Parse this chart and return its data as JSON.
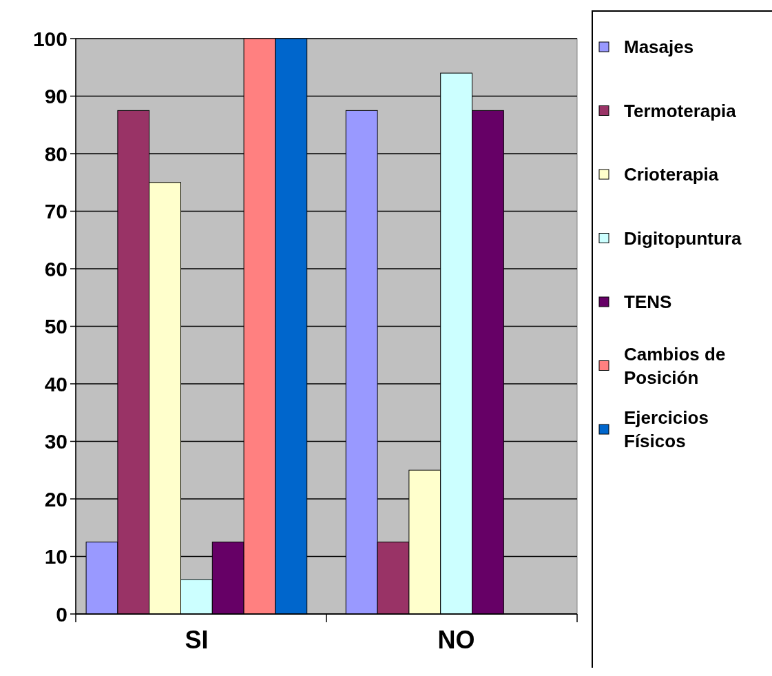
{
  "chart_data": {
    "type": "bar",
    "categories": [
      "SI",
      "NO"
    ],
    "series": [
      {
        "name": "Masajes",
        "color": "#9999ff",
        "values": [
          12.5,
          87.5
        ]
      },
      {
        "name": "Termoterapia",
        "color": "#993366",
        "values": [
          87.5,
          12.5
        ]
      },
      {
        "name": "Crioterapia",
        "color": "#ffffcc",
        "values": [
          75,
          25
        ]
      },
      {
        "name": "Digitopuntura",
        "color": "#ccffff",
        "values": [
          6,
          94
        ]
      },
      {
        "name": "TENS",
        "color": "#660066",
        "values": [
          12.5,
          87.5
        ]
      },
      {
        "name": "Cambios de Posición",
        "color": "#ff8080",
        "values": [
          100,
          0
        ]
      },
      {
        "name": "Ejercicios Físicos",
        "color": "#0066cc",
        "values": [
          100,
          0
        ]
      }
    ],
    "ylim": [
      0,
      100
    ],
    "yticks": [
      0,
      10,
      20,
      30,
      40,
      50,
      60,
      70,
      80,
      90,
      100
    ],
    "grid": "y",
    "legend": "right"
  }
}
